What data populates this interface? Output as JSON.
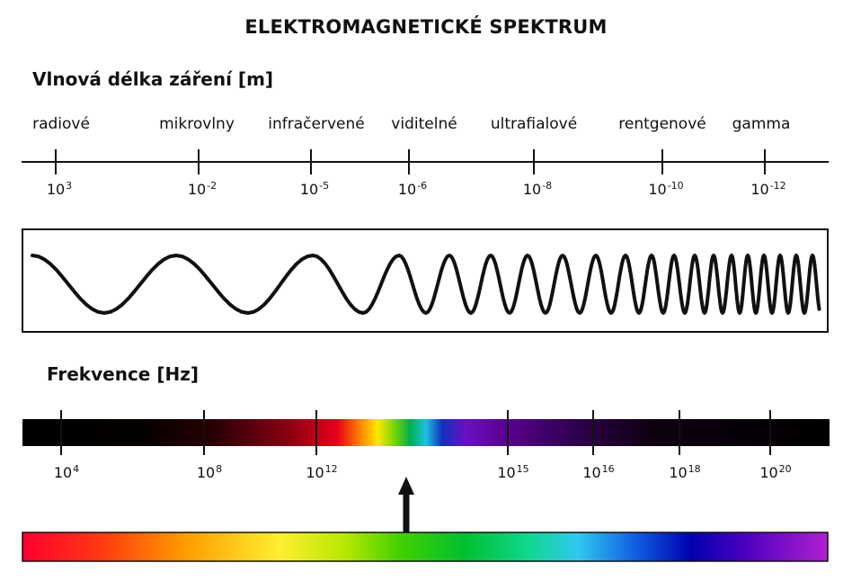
{
  "title": "ELEKTROMAGNETICKÉ SPEKTRUM",
  "wavelength": {
    "heading": "Vlnová délka záření [m]",
    "bands": [
      "radiové",
      "mikrovlny",
      "infračervené",
      "viditelné",
      "ultrafialové",
      "rentgenové",
      "gamma"
    ],
    "ticks": [
      {
        "base": "10",
        "exp": "3"
      },
      {
        "base": "10",
        "exp": "-2"
      },
      {
        "base": "10",
        "exp": "-5"
      },
      {
        "base": "10",
        "exp": "-6"
      },
      {
        "base": "10",
        "exp": "-8"
      },
      {
        "base": "10",
        "exp": "-10"
      },
      {
        "base": "10",
        "exp": "-12"
      }
    ]
  },
  "frequency": {
    "heading": "Frekvence [Hz]",
    "ticks": [
      {
        "base": "10",
        "exp": "4"
      },
      {
        "base": "10",
        "exp": "8"
      },
      {
        "base": "10",
        "exp": "12"
      },
      {
        "base": "10",
        "exp": "15"
      },
      {
        "base": "10",
        "exp": "16"
      },
      {
        "base": "10",
        "exp": "18"
      },
      {
        "base": "10",
        "exp": "20"
      }
    ]
  },
  "colors": {
    "stroke": "#111111",
    "bar_background": "#000000"
  }
}
